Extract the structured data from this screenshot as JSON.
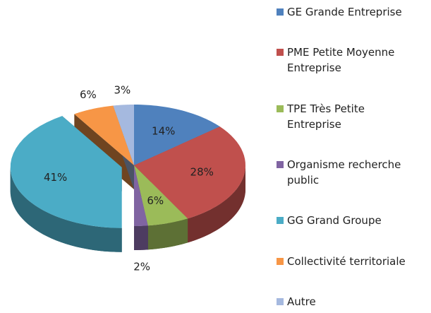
{
  "chart_data": {
    "type": "pie",
    "categories": [
      "GE Grande Entreprise",
      "PME Petite Moyenne Entreprise",
      "TPE Très Petite Entreprise",
      "Organisme recherche public",
      "GG Grand Groupe",
      "Collectivité territoriale",
      "Autre"
    ],
    "values": [
      14,
      28,
      6,
      2,
      41,
      6,
      3
    ],
    "value_labels": [
      "14%",
      "28%",
      "6%",
      "2%",
      "41%",
      "6%",
      "3%"
    ],
    "colors": [
      "#4f81bd",
      "#c0504d",
      "#9bbb59",
      "#8064a2",
      "#4bacc6",
      "#f79646",
      "#a5b9df"
    ],
    "exploded": "GG Grand Groupe",
    "legend": "right"
  }
}
